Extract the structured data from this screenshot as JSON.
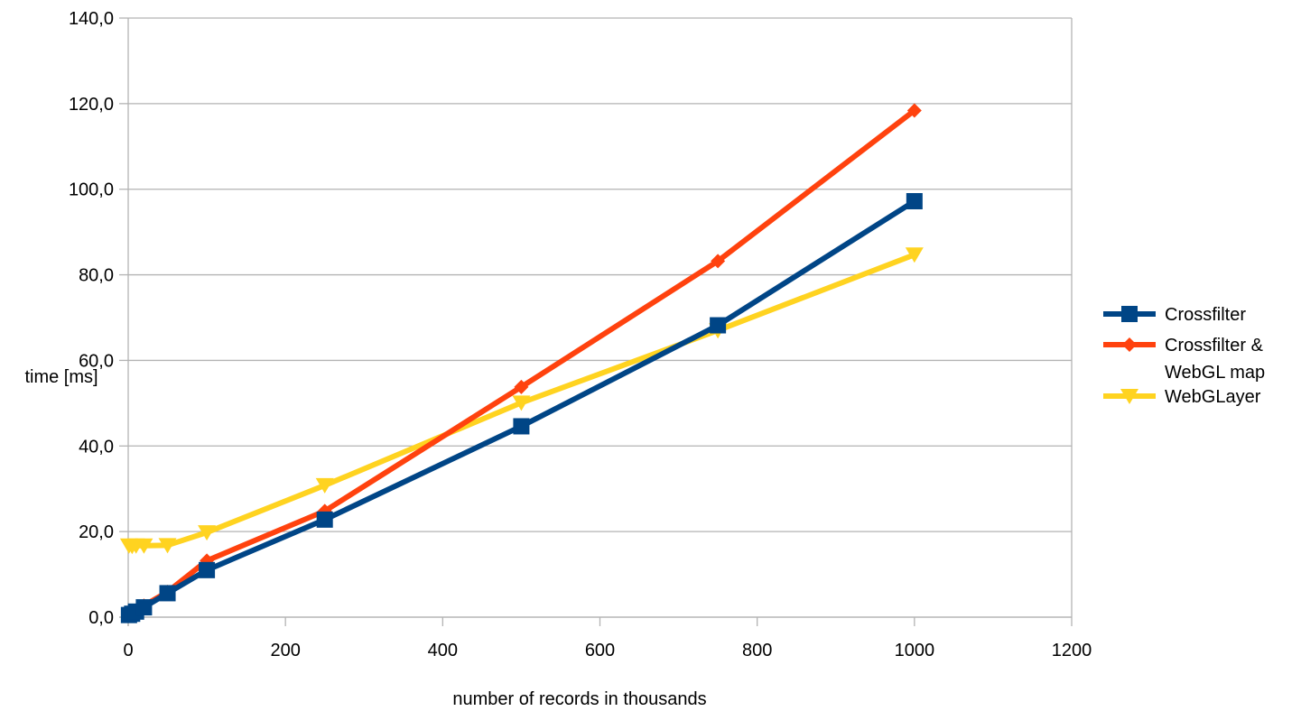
{
  "chart_data": {
    "type": "line",
    "xlabel": "number of records in thousands",
    "ylabel": "time [ms]",
    "xlim": [
      0,
      1200
    ],
    "ylim": [
      0,
      140
    ],
    "xticks": [
      0,
      200,
      400,
      600,
      800,
      1000,
      1200
    ],
    "yticks": [
      0,
      20,
      40,
      60,
      80,
      100,
      120,
      140
    ],
    "xtick_labels": [
      "0",
      "200",
      "400",
      "600",
      "800",
      "1000",
      "1200"
    ],
    "ytick_labels": [
      "0,0",
      "20,0",
      "40,0",
      "60,0",
      "80,0",
      "100,0",
      "120,0",
      "140,0"
    ],
    "grid": true,
    "legend_position": "right",
    "series": [
      {
        "name": "Crossfilter",
        "color": "#004586",
        "marker": "square",
        "x": [
          1,
          5,
          10,
          20,
          50,
          100,
          250,
          500,
          750,
          1000
        ],
        "y": [
          0.5,
          0.8,
          1.3,
          2.3,
          5.6,
          11.0,
          22.8,
          44.6,
          68.2,
          97.2
        ]
      },
      {
        "name": "Crossfilter & WebGL map",
        "legend_lines": [
          "Crossfilter &",
          "WebGL map"
        ],
        "color": "#ff420e",
        "marker": "diamond",
        "x": [
          1,
          5,
          10,
          20,
          50,
          100,
          250,
          500,
          750,
          1000
        ],
        "y": [
          0.6,
          1.0,
          1.6,
          2.7,
          5.9,
          13.2,
          24.8,
          53.8,
          83.2,
          118.4
        ]
      },
      {
        "name": "WebGLayer",
        "color": "#ffd320",
        "marker": "triangle-down",
        "x": [
          1,
          5,
          10,
          20,
          50,
          100,
          250,
          500,
          750,
          1000
        ],
        "y": [
          16.7,
          16.6,
          16.7,
          16.7,
          16.8,
          19.8,
          30.8,
          50.1,
          67.0,
          84.7
        ]
      }
    ]
  }
}
